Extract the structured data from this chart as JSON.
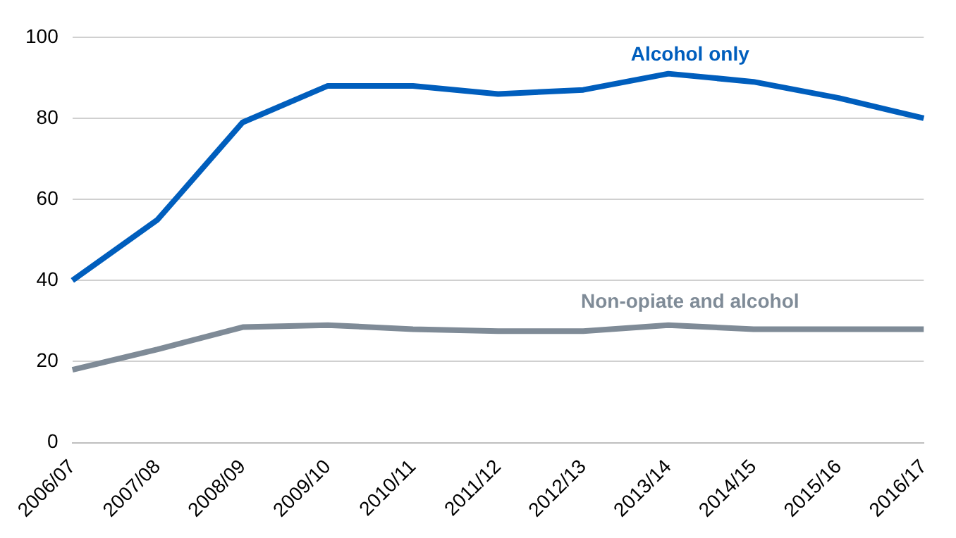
{
  "chart_data": {
    "type": "line",
    "categories": [
      "2006/07",
      "2007/08",
      "2008/09",
      "2009/10",
      "2010/11",
      "2011/12",
      "2012/13",
      "2013/14",
      "2014/15",
      "2015/16",
      "2016/17"
    ],
    "series": [
      {
        "name": "Alcohol only",
        "color": "#005ebd",
        "values": [
          40,
          55,
          79,
          88,
          88,
          86,
          87,
          91,
          89,
          85,
          80
        ]
      },
      {
        "name": "Non-opiate and alcohol",
        "color": "#7f8b97",
        "values": [
          18,
          23,
          28.5,
          29,
          28,
          27.5,
          27.5,
          29,
          28,
          28,
          28
        ]
      }
    ],
    "ylim": [
      0,
      100
    ],
    "yticks": [
      0,
      20,
      40,
      60,
      80,
      100
    ],
    "grid": "y",
    "legend": false,
    "marker": "none",
    "line_style": "solid"
  }
}
